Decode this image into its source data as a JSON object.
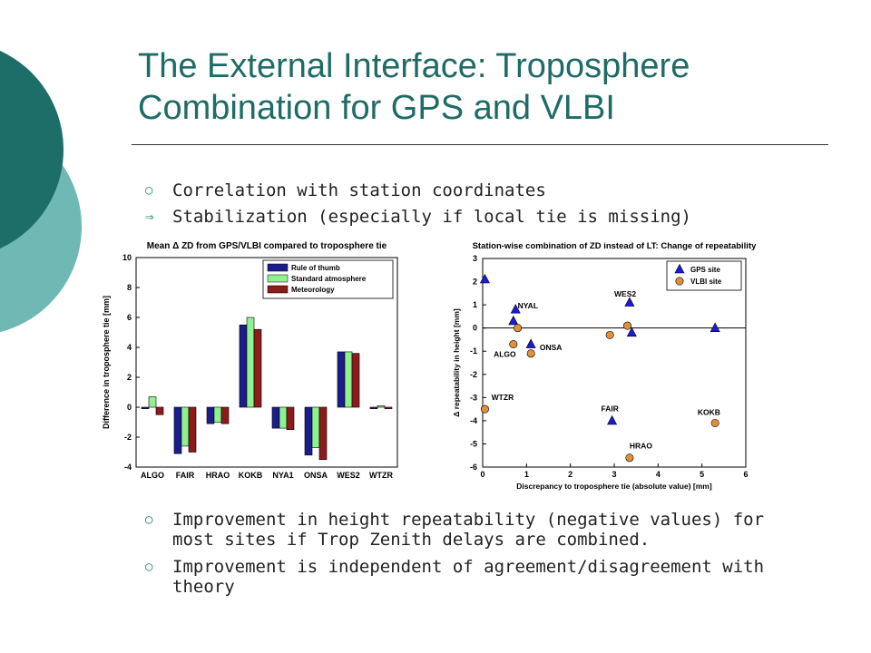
{
  "slide": {
    "title": "The External Interface: Troposphere Combination for GPS and VLBI",
    "bullets_top": [
      {
        "marker": "o",
        "text": "Correlation with station coordinates"
      },
      {
        "marker": "arrow",
        "text": "Stabilization (especially if local tie is missing)"
      }
    ],
    "bullets_bottom": [
      {
        "marker": "o",
        "text": "Improvement in height repeatability (negative values) for most sites if Trop Zenith delays are combined."
      },
      {
        "marker": "o",
        "text": "Improvement is independent of agreement/disagreement with theory"
      }
    ]
  },
  "colors": {
    "title": "#1f6b66",
    "deco_dark": "#1d6e69",
    "deco_light": "#6fb8b4",
    "bullet_marker": "#2e8c86"
  },
  "chart_data": [
    {
      "type": "bar",
      "title": "Mean  Δ ZD from GPS/VLBI compared to troposphere tie",
      "xlabel": "",
      "ylabel": "Difference in troposphere tie [mm]",
      "categories": [
        "ALGO",
        "FAIR",
        "HRAO",
        "KOKB",
        "NYA1",
        "ONSA",
        "WES2",
        "WTZR"
      ],
      "ylim": [
        -4,
        10
      ],
      "yticks": [
        -4,
        -2,
        0,
        2,
        4,
        6,
        8,
        10
      ],
      "legend_position": "top-right",
      "series": [
        {
          "name": "Rule of thumb",
          "color": "#1c1c8c",
          "values": [
            -0.1,
            -3.1,
            -1.1,
            5.5,
            -1.4,
            -3.2,
            3.7,
            -0.1
          ]
        },
        {
          "name": "Standard atmosphere",
          "color": "#8ef28e",
          "values": [
            0.7,
            -2.6,
            -1.0,
            6.0,
            -1.4,
            -2.7,
            3.7,
            0.1
          ]
        },
        {
          "name": "Meteorology",
          "color": "#8c1c1c",
          "values": [
            -0.5,
            -3.0,
            -1.1,
            5.2,
            -1.5,
            -3.5,
            3.6,
            -0.1
          ]
        }
      ]
    },
    {
      "type": "scatter",
      "title": "Station-wise combination of ZD instead of LT: Change of repeatability",
      "xlabel": "Discrepancy to troposphere tie (absolute value) [mm]",
      "ylabel": "Δ repeatability in height [mm]",
      "xlim": [
        0,
        6
      ],
      "ylim": [
        -6,
        3
      ],
      "xticks": [
        0,
        1,
        2,
        3,
        4,
        5,
        6
      ],
      "yticks": [
        -6,
        -5,
        -4,
        -3,
        -2,
        -1,
        0,
        1,
        2,
        3
      ],
      "zero_line": true,
      "legend_position": "top-right",
      "series": [
        {
          "name": "GPS site",
          "marker": "triangle",
          "color": "#1c1cd6",
          "points": [
            {
              "x": 0.05,
              "y": 2.1
            },
            {
              "x": 0.75,
              "y": 0.8
            },
            {
              "x": 0.7,
              "y": 0.3
            },
            {
              "x": 1.1,
              "y": -0.7
            },
            {
              "x": 3.35,
              "y": 1.1
            },
            {
              "x": 3.4,
              "y": -0.2
            },
            {
              "x": 5.3,
              "y": 0.0
            },
            {
              "x": 2.95,
              "y": -4.0
            }
          ]
        },
        {
          "name": "VLBI site",
          "marker": "circle",
          "color": "#e0903a",
          "points": [
            {
              "x": 0.05,
              "y": -3.5
            },
            {
              "x": 0.7,
              "y": -0.7
            },
            {
              "x": 0.8,
              "y": 0.0
            },
            {
              "x": 1.1,
              "y": -1.1
            },
            {
              "x": 2.9,
              "y": -0.3
            },
            {
              "x": 3.3,
              "y": 0.1
            },
            {
              "x": 5.3,
              "y": -4.1
            },
            {
              "x": 3.35,
              "y": -5.6
            }
          ]
        }
      ],
      "annotations": [
        {
          "text": "NYAL",
          "x": 0.8,
          "y": 0.85
        },
        {
          "text": "WES2",
          "x": 3.0,
          "y": 1.35
        },
        {
          "text": "ONSA",
          "x": 1.3,
          "y": -0.95
        },
        {
          "text": "ALGO",
          "x": 0.25,
          "y": -1.25
        },
        {
          "text": "WTZR",
          "x": 0.2,
          "y": -3.1
        },
        {
          "text": "FAIR",
          "x": 2.7,
          "y": -3.6
        },
        {
          "text": "KOKB",
          "x": 4.9,
          "y": -3.75
        },
        {
          "text": "HRAO",
          "x": 3.35,
          "y": -5.2
        }
      ]
    }
  ]
}
